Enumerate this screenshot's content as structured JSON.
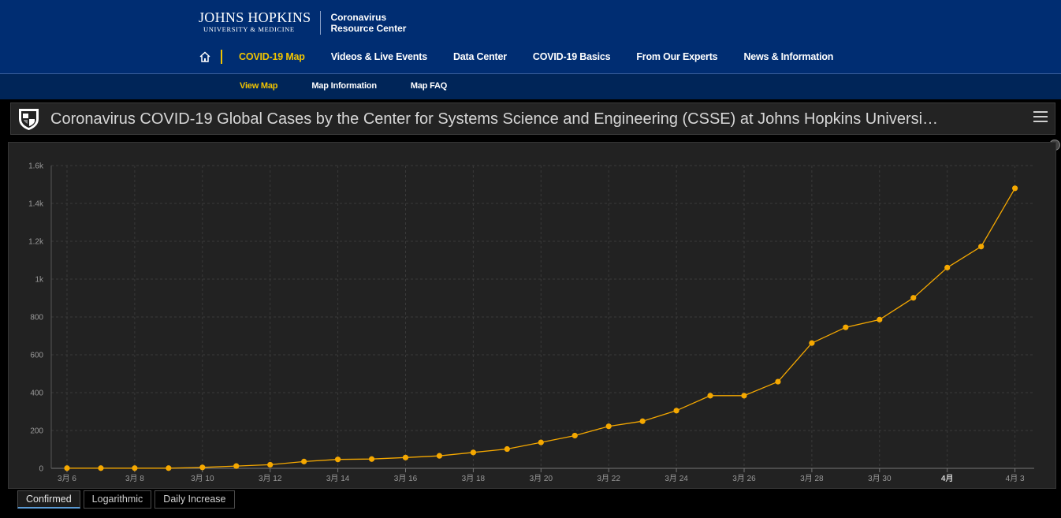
{
  "brand": {
    "jh_line1": "JOHNS HOPKINS",
    "jh_line2": "UNIVERSITY & MEDICINE",
    "crc_line1": "Coronavirus",
    "crc_line2": "Resource Center"
  },
  "main_nav": {
    "home_icon": "home-icon",
    "items": [
      {
        "label": "COVID-19 Map",
        "active": true
      },
      {
        "label": "Videos & Live Events",
        "active": false
      },
      {
        "label": "Data Center",
        "active": false
      },
      {
        "label": "COVID-19 Basics",
        "active": false
      },
      {
        "label": "From Our Experts",
        "active": false
      },
      {
        "label": "News & Information",
        "active": false
      }
    ]
  },
  "sub_nav": {
    "items": [
      {
        "label": "View Map",
        "active": true
      },
      {
        "label": "Map Information",
        "active": false
      },
      {
        "label": "Map FAQ",
        "active": false
      }
    ]
  },
  "dashboard": {
    "title": "Coronavirus COVID-19 Global Cases by the Center for Systems Science and Engineering (CSSE) at Johns Hopkins Universi…",
    "menu_icon": "hamburger-menu-icon"
  },
  "colors": {
    "nav_bg": "#002d72",
    "accent": "#f1c400",
    "series": "#f5a800"
  },
  "chart_data": {
    "type": "line",
    "title": "",
    "xlabel": "",
    "ylabel": "",
    "x_tick_labels": [
      "3月 6",
      "3月 8",
      "3月 10",
      "3月 12",
      "3月 14",
      "3月 16",
      "3月 18",
      "3月 20",
      "3月 22",
      "3月 24",
      "3月 26",
      "3月 28",
      "3月 30",
      "4月",
      "4月 3"
    ],
    "x_tick_dates": [
      "2020-03-06",
      "2020-03-08",
      "2020-03-10",
      "2020-03-12",
      "2020-03-14",
      "2020-03-16",
      "2020-03-18",
      "2020-03-20",
      "2020-03-22",
      "2020-03-24",
      "2020-03-26",
      "2020-03-28",
      "2020-03-30",
      "2020-04-01",
      "2020-04-03"
    ],
    "y_tick_labels": [
      "0",
      "200",
      "400",
      "600",
      "800",
      "1k",
      "1.2k",
      "1.4k",
      "1.6k"
    ],
    "y_tick_values": [
      0,
      200,
      400,
      600,
      800,
      1000,
      1200,
      1400,
      1600
    ],
    "ylim": [
      0,
      1600
    ],
    "grid": true,
    "series": [
      {
        "values": [
          {
            "x": "2020-03-06",
            "y": 1
          },
          {
            "x": "2020-03-07",
            "y": 1
          },
          {
            "x": "2020-03-08",
            "y": 1
          },
          {
            "x": "2020-03-09",
            "y": 1
          },
          {
            "x": "2020-03-10",
            "y": 5
          },
          {
            "x": "2020-03-11",
            "y": 12
          },
          {
            "x": "2020-03-12",
            "y": 19
          },
          {
            "x": "2020-03-13",
            "y": 36
          },
          {
            "x": "2020-03-14",
            "y": 47
          },
          {
            "x": "2020-03-15",
            "y": 49
          },
          {
            "x": "2020-03-16",
            "y": 57
          },
          {
            "x": "2020-03-17",
            "y": 66
          },
          {
            "x": "2020-03-18",
            "y": 84
          },
          {
            "x": "2020-03-19",
            "y": 102
          },
          {
            "x": "2020-03-20",
            "y": 137
          },
          {
            "x": "2020-03-21",
            "y": 173
          },
          {
            "x": "2020-03-22",
            "y": 222
          },
          {
            "x": "2020-03-23",
            "y": 249
          },
          {
            "x": "2020-03-24",
            "y": 305
          },
          {
            "x": "2020-03-25",
            "y": 384
          },
          {
            "x": "2020-03-26",
            "y": 384
          },
          {
            "x": "2020-03-27",
            "y": 458
          },
          {
            "x": "2020-03-28",
            "y": 662
          },
          {
            "x": "2020-03-29",
            "y": 745
          },
          {
            "x": "2020-03-30",
            "y": 786
          },
          {
            "x": "2020-03-31",
            "y": 901
          },
          {
            "x": "2020-04-01",
            "y": 1061
          },
          {
            "x": "2020-04-02",
            "y": 1172
          },
          {
            "x": "2020-04-03",
            "y": 1480
          }
        ]
      }
    ]
  },
  "tabs": [
    {
      "label": "Confirmed",
      "active": true
    },
    {
      "label": "Logarithmic",
      "active": false
    },
    {
      "label": "Daily Increase",
      "active": false
    }
  ]
}
